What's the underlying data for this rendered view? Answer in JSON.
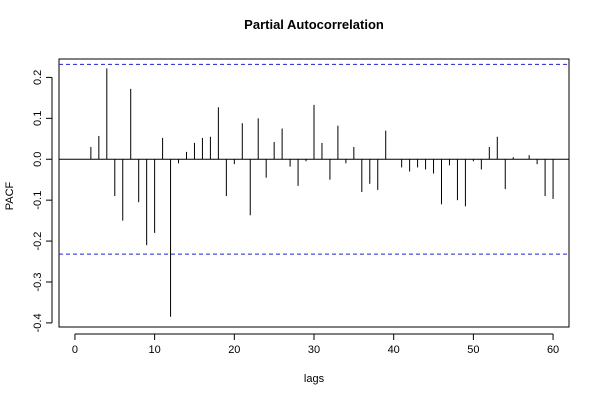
{
  "chart_data": {
    "type": "bar",
    "title": "Partial Autocorrelation",
    "xlabel": "lags",
    "ylabel": "PACF",
    "xlim": [
      -2,
      62
    ],
    "ylim": [
      -0.41,
      0.245
    ],
    "x_ticks": [
      0,
      10,
      20,
      30,
      40,
      50,
      60
    ],
    "y_ticks": [
      -0.4,
      -0.3,
      -0.2,
      -0.1,
      0.0,
      0.1,
      0.2
    ],
    "y_tick_labels": [
      "-0.4",
      "-0.3",
      "-0.2",
      "-0.1",
      "0.0",
      "0.1",
      "0.2"
    ],
    "x_tick_labels": [
      "0",
      "10",
      "20",
      "30",
      "40",
      "50",
      "60"
    ],
    "zero_line": true,
    "confidence_bounds": [
      0.232,
      -0.232
    ],
    "colors": {
      "bars": "#000000",
      "bounds": "#2222cc",
      "frame": "#000000"
    },
    "lags": [
      1,
      2,
      3,
      4,
      5,
      6,
      7,
      8,
      9,
      10,
      11,
      12,
      13,
      14,
      15,
      16,
      17,
      18,
      19,
      20,
      21,
      22,
      23,
      24,
      25,
      26,
      27,
      28,
      29,
      30,
      31,
      32,
      33,
      34,
      35,
      36,
      37,
      38,
      39,
      40,
      41,
      42,
      43,
      44,
      45,
      46,
      47,
      48,
      49,
      50,
      51,
      52,
      53,
      54,
      55,
      56,
      57,
      58,
      59,
      60
    ],
    "values": [
      0.0,
      0.03,
      0.057,
      0.222,
      -0.09,
      -0.15,
      0.172,
      -0.105,
      -0.21,
      -0.18,
      0.052,
      -0.385,
      -0.01,
      0.018,
      0.04,
      0.052,
      0.055,
      0.127,
      -0.09,
      -0.012,
      0.088,
      -0.137,
      0.1,
      -0.045,
      0.042,
      0.075,
      -0.018,
      -0.065,
      -0.005,
      0.133,
      0.04,
      -0.05,
      0.082,
      -0.01,
      0.03,
      -0.08,
      -0.06,
      -0.075,
      0.07,
      0.0,
      -0.02,
      -0.03,
      -0.02,
      -0.025,
      -0.035,
      -0.11,
      -0.015,
      -0.1,
      -0.115,
      -0.005,
      -0.025,
      0.03,
      0.055,
      -0.073,
      0.005,
      0.0,
      0.01,
      -0.012,
      -0.09,
      -0.097
    ]
  }
}
